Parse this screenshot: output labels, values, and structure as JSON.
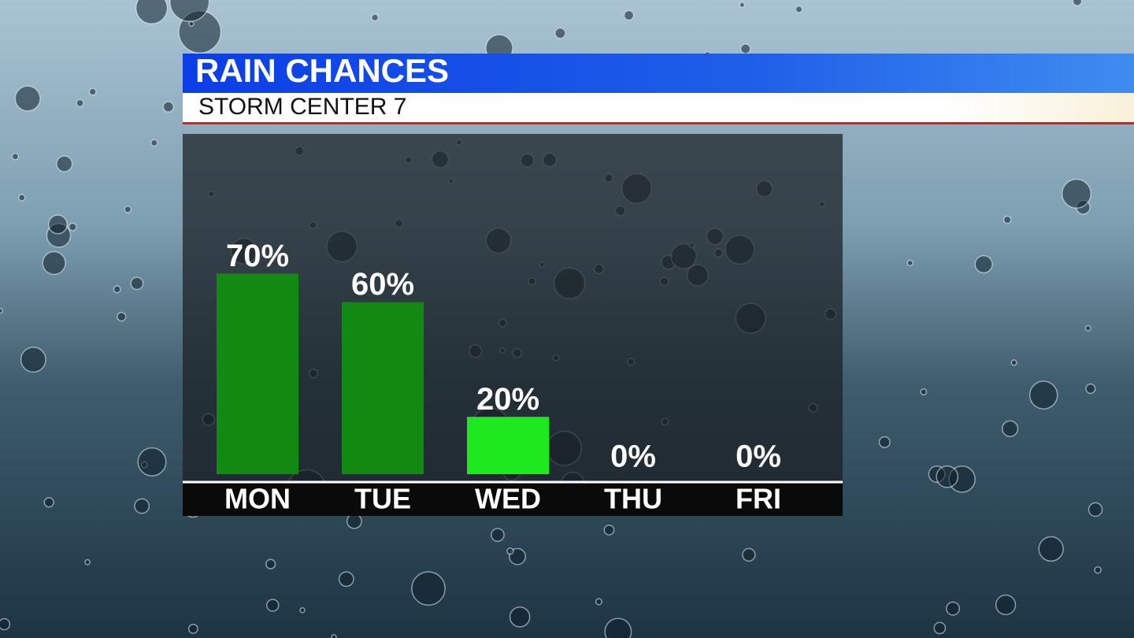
{
  "chart_data": {
    "type": "bar",
    "title": "RAIN CHANCES",
    "subtitle": "STORM CENTER 7",
    "categories": [
      "MON",
      "TUE",
      "WED",
      "THU",
      "FRI"
    ],
    "values": [
      70,
      60,
      20,
      0,
      0
    ],
    "value_labels": [
      "70%",
      "60%",
      "20%",
      "0%",
      "0%"
    ],
    "colors": [
      "#128a12",
      "#128a12",
      "#1ee81e",
      "#1ee81e",
      "#1ee81e"
    ]
  }
}
